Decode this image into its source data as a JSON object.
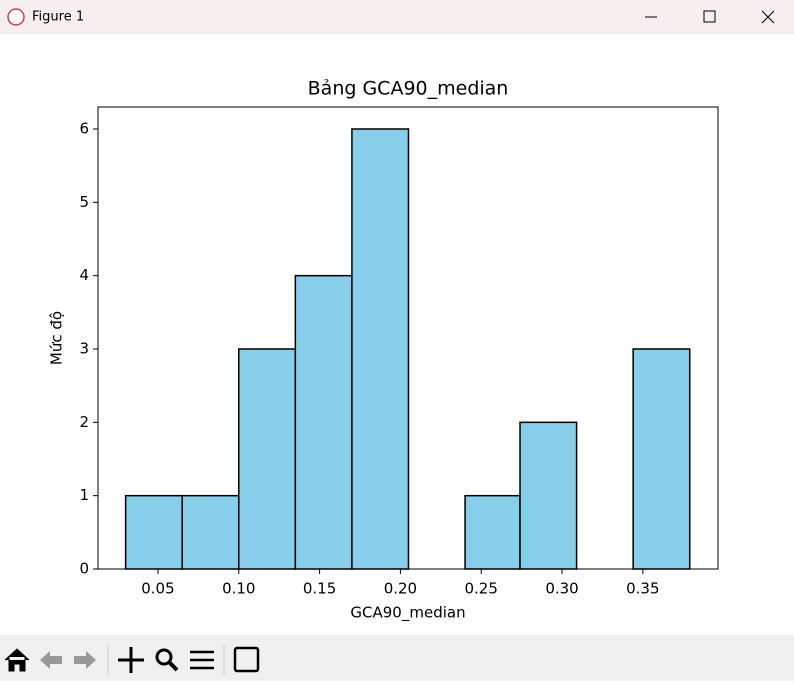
{
  "window": {
    "title": "Figure 1"
  },
  "chart_data": {
    "type": "histogram",
    "title": "Bảng GCA90_median",
    "x_label": "GCA90_median",
    "y_label": "Mức độ",
    "bins": [
      0.03,
      0.065,
      0.1,
      0.135,
      0.17,
      0.205,
      0.24,
      0.274,
      0.309,
      0.344,
      0.379
    ],
    "values": [
      1,
      1,
      3,
      4,
      6,
      0,
      1,
      2,
      0,
      3
    ],
    "color": "#87ceeb",
    "edge_color": "#000000",
    "xlim": [
      0.0129,
      0.3965
    ],
    "xticks": [
      0.05,
      {
        "value": 0.1,
        "label": "0.10"
      },
      0.15,
      {
        "value": 0.2,
        "label": "0.20"
      },
      0.25,
      {
        "value": 0.3,
        "label": "0.30"
      },
      0.35
    ],
    "ylim": [
      0,
      6.3
    ],
    "yticks": [
      0,
      1,
      2,
      3,
      4,
      5,
      6
    ],
    "grid": false
  }
}
